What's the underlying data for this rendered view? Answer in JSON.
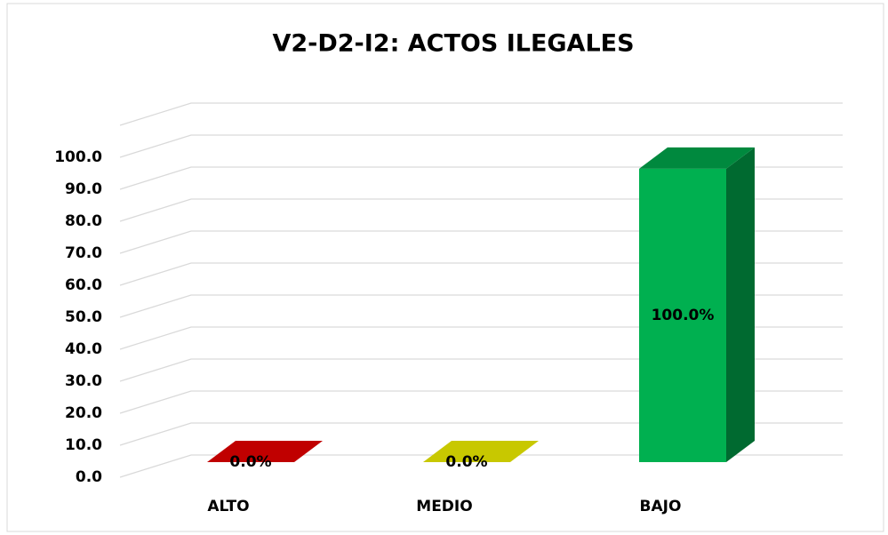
{
  "chart_data": {
    "type": "bar3d",
    "title": "V2-D2-I2: ACTOS ILEGALES",
    "categories": [
      "ALTO",
      "MEDIO",
      "BAJO"
    ],
    "values": [
      0,
      0,
      100
    ],
    "value_labels": [
      "0.0%",
      "0.0%",
      "100.0%"
    ],
    "colors": [
      "#c00000",
      "#c8c800",
      "#00b050"
    ],
    "ylim": [
      0,
      110
    ],
    "yticks": [
      {
        "value": 0,
        "label": "0.0"
      },
      {
        "value": 10,
        "label": "10.0"
      },
      {
        "value": 20,
        "label": "20.0"
      },
      {
        "value": 30,
        "label": "30.0"
      },
      {
        "value": 40,
        "label": "40.0"
      },
      {
        "value": 50,
        "label": "50.0"
      },
      {
        "value": 60,
        "label": "60.0"
      },
      {
        "value": 70,
        "label": "70.0"
      },
      {
        "value": 80,
        "label": "80.0"
      },
      {
        "value": 90,
        "label": "90.0"
      },
      {
        "value": 100,
        "label": "100.0"
      }
    ],
    "grid": true
  }
}
